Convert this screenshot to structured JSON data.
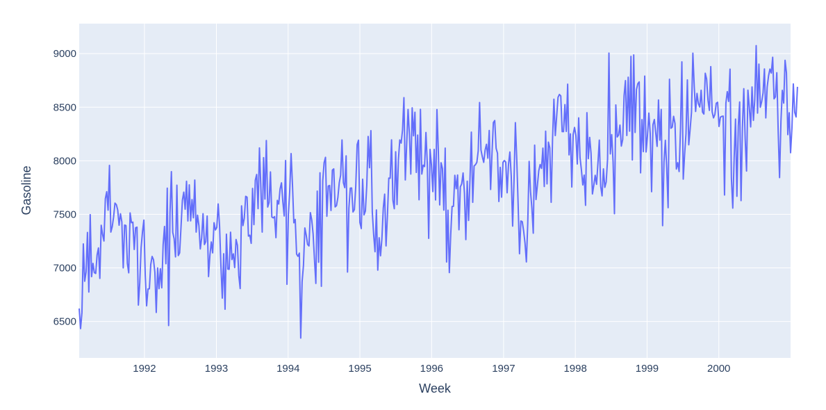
{
  "chart_data": {
    "type": "line",
    "title": "",
    "xlabel": "Week",
    "ylabel": "Gasoline",
    "x_ticks": [
      "1992",
      "1993",
      "1994",
      "1995",
      "1996",
      "1997",
      "1998",
      "1999",
      "2000"
    ],
    "y_ticks": [
      "6500",
      "7000",
      "7500",
      "8000",
      "8500",
      "9000"
    ],
    "xlim": [
      "1991-02-03",
      "2000-12-31"
    ],
    "ylim": [
      6160,
      9280
    ],
    "grid": true,
    "legend": "none",
    "colors": {
      "line": "#636efa",
      "plot_bg": "#e5ecf6",
      "grid": "#ffffff",
      "text": "#2a3f5f"
    },
    "series": [
      {
        "x_start": "1991-02-03",
        "x_step_days": 7,
        "values": [
          6621,
          6433,
          6582,
          7224,
          6875,
          6962,
          7331,
          6775,
          7497,
          6918,
          7042,
          6956,
          6948,
          7120,
          7186,
          6902,
          7398,
          7313,
          7251,
          7645,
          7711,
          7539,
          7957,
          7334,
          7384,
          7475,
          7605,
          7590,
          7540,
          7398,
          7505,
          7429,
          7000,
          7400,
          7395,
          7044,
          6954,
          7513,
          7422,
          7427,
          7172,
          7375,
          7380,
          6653,
          6857,
          7189,
          7337,
          7446,
          6932,
          6646,
          6803,
          6805,
          7031,
          7107,
          7076,
          6959,
          6584,
          6999,
          6806,
          6993,
          6814,
          7216,
          7387,
          7039,
          7744,
          6462,
          7514,
          7898,
          7331,
          7271,
          7103,
          7772,
          7115,
          7140,
          7382,
          7632,
          7707,
          7548,
          7808,
          7438,
          7775,
          7439,
          7637,
          7468,
          7820,
          7334,
          7492,
          7395,
          7177,
          7280,
          7506,
          7218,
          7245,
          7484,
          6919,
          7117,
          7242,
          7140,
          7422,
          7354,
          7378,
          7597,
          7396,
          7020,
          6718,
          7132,
          6614,
          7315,
          6989,
          6987,
          7333,
          7078,
          7131,
          7003,
          7265,
          7211,
          6928,
          6807,
          7579,
          7395,
          7464,
          7668,
          7660,
          7297,
          7305,
          7229,
          7742,
          7404,
          7819,
          7872,
          7553,
          8120,
          7759,
          7334,
          8029,
          7642,
          8189,
          7568,
          7611,
          7896,
          7475,
          7467,
          7478,
          7282,
          7630,
          7596,
          7737,
          7794,
          7618,
          7484,
          8002,
          6847,
          7495,
          7716,
          8067,
          7777,
          7421,
          7452,
          7129,
          7108,
          7138,
          6345,
          6870,
          7025,
          7373,
          7305,
          7219,
          7205,
          7516,
          7448,
          7317,
          7076,
          6855,
          7717,
          7053,
          7888,
          6828,
          7813,
          7982,
          8032,
          7482,
          7764,
          7769,
          7536,
          7913,
          7924,
          7569,
          7581,
          7657,
          7794,
          7865,
          8194,
          7796,
          7749,
          8046,
          6961,
          7557,
          7744,
          7746,
          7522,
          7544,
          7762,
          8151,
          8192,
          7425,
          7367,
          7828,
          7495,
          7531,
          7770,
          8227,
          7935,
          8281,
          7524,
          7311,
          7151,
          7541,
          6979,
          7281,
          7113,
          7274,
          7559,
          7688,
          7205,
          7486,
          7838,
          7837,
          8195,
          7631,
          7552,
          8084,
          7591,
          8012,
          8194,
          8165,
          8288,
          8589,
          7821,
          8156,
          8479,
          8241,
          7876,
          8494,
          8233,
          8453,
          7891,
          8240,
          7636,
          8480,
          7876,
          7959,
          7946,
          8264,
          7966,
          7276,
          8106,
          7963,
          7712,
          8106,
          7634,
          8478,
          8091,
          7588,
          7981,
          7928,
          7539,
          8118,
          7055,
          7538,
          6956,
          7309,
          7573,
          7575,
          7864,
          7739,
          7867,
          7356,
          7756,
          7785,
          7886,
          7696,
          7264,
          7809,
          7443,
          7825,
          8267,
          7612,
          7951,
          7963,
          7985,
          8093,
          8544,
          8101,
          8036,
          7985,
          8099,
          8154,
          8024,
          8283,
          7732,
          8069,
          8356,
          8376,
          8117,
          8070,
          7620,
          7938,
          7660,
          7985,
          8002,
          7988,
          7701,
          7966,
          8082,
          7856,
          7390,
          7809,
          8356,
          8015,
          7594,
          7132,
          7438,
          7431,
          7345,
          7232,
          7056,
          7418,
          7994,
          7714,
          7558,
          7324,
          8146,
          7638,
          7771,
          7907,
          7965,
          7929,
          8118,
          7760,
          8276,
          7784,
          8174,
          8121,
          7612,
          8195,
          8575,
          8235,
          8414,
          8592,
          8619,
          8605,
          8272,
          8272,
          8524,
          8274,
          8715,
          8055,
          8251,
          7755,
          8246,
          8311,
          8234,
          7970,
          8400,
          8028,
          7914,
          7774,
          7866,
          7584,
          8449,
          8020,
          8218,
          8069,
          7690,
          7771,
          7864,
          7780,
          7978,
          8193,
          7762,
          7672,
          7924,
          7752,
          7802,
          8015,
          9005,
          8064,
          8244,
          7993,
          7506,
          8521,
          8222,
          8240,
          8333,
          8137,
          8198,
          8607,
          8748,
          8236,
          8780,
          8276,
          8974,
          8007,
          8988,
          8264,
          8665,
          8720,
          8736,
          7887,
          8384,
          8085,
          8790,
          8082,
          8234,
          8445,
          8255,
          7711,
          8337,
          8385,
          8261,
          8134,
          8567,
          8193,
          8479,
          7394,
          7988,
          8191,
          7930,
          7562,
          8761,
          8303,
          8314,
          8415,
          8349,
          7923,
          7982,
          7899,
          8296,
          8923,
          7829,
          8060,
          8252,
          8755,
          8149,
          8292,
          8453,
          9004,
          8690,
          8460,
          8629,
          8533,
          8502,
          8658,
          8454,
          8436,
          8817,
          8761,
          8565,
          8470,
          8879,
          8457,
          8400,
          8433,
          8537,
          8546,
          8320,
          8407,
          8414,
          8417,
          7680,
          8538,
          8645,
          8554,
          8855,
          7837,
          7558,
          8028,
          8389,
          7668,
          8325,
          8549,
          7628,
          8305,
          8673,
          8205,
          7904,
          8659,
          8501,
          8316,
          8689,
          8377,
          8573,
          9075,
          8445,
          8902,
          8499,
          8552,
          8633,
          8857,
          8400,
          8689,
          8792,
          8856,
          8818,
          8966,
          8578,
          8597,
          8822,
          8274,
          7843,
          8368,
          8657,
          8538,
          8938,
          8821,
          8244,
          8448,
          8075,
          8307,
          8717,
          8452,
          8409,
          8690
        ]
      }
    ]
  }
}
